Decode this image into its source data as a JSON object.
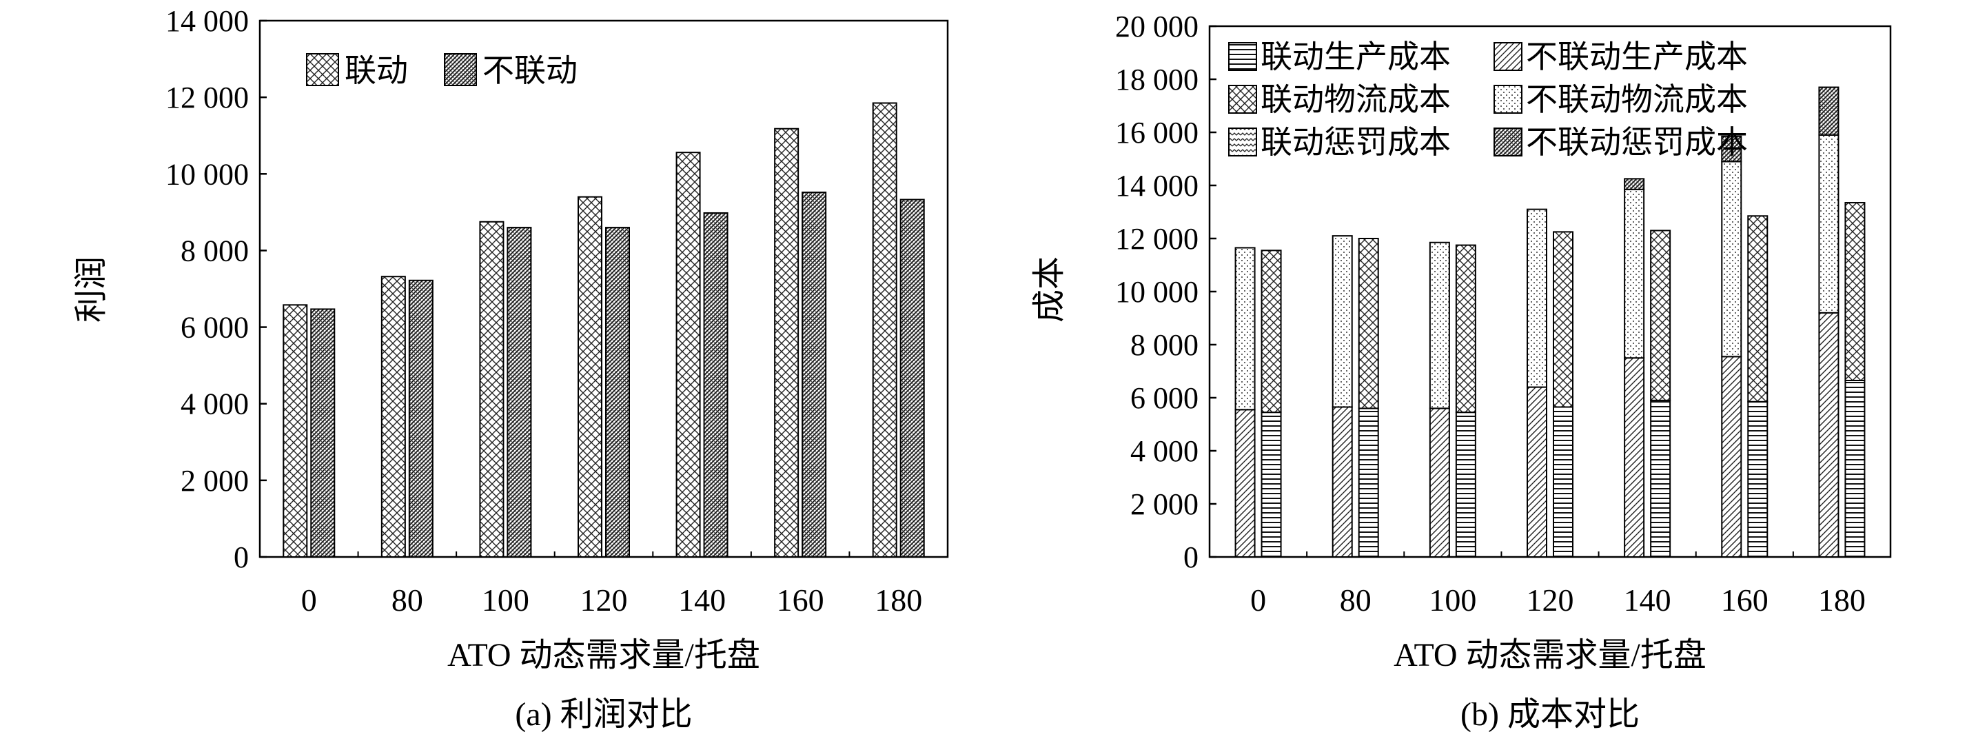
{
  "chart_data": [
    {
      "type": "bar",
      "title": "(a) 利润对比",
      "xlabel": "ATO 动态需求量/托盘",
      "ylabel": "利润",
      "ylim": [
        0,
        14000
      ],
      "yticks": [
        "0",
        "2 000",
        "4 000",
        "6 000",
        "8 000",
        "10 000",
        "12 000",
        "14 000"
      ],
      "categories": [
        "0",
        "80",
        "100",
        "120",
        "140",
        "160",
        "180"
      ],
      "legend_position": "top-left",
      "series": [
        {
          "name": "联动",
          "pattern": "cross-hatch",
          "values": [
            6580,
            7320,
            8750,
            9400,
            10560,
            11180,
            11850
          ]
        },
        {
          "name": "不联动",
          "pattern": "dense-diagonal",
          "values": [
            6470,
            7220,
            8600,
            8600,
            8980,
            9520,
            9330
          ]
        }
      ]
    },
    {
      "type": "bar",
      "stacked": true,
      "title": "(b) 成本对比",
      "xlabel": "ATO 动态需求量/托盘",
      "ylabel": "成本",
      "ylim": [
        0,
        20000
      ],
      "yticks": [
        "0",
        "2 000",
        "4 000",
        "6 000",
        "8 000",
        "10 000",
        "12 000",
        "14 000",
        "16 000",
        "18 000",
        "20 000"
      ],
      "categories": [
        "0",
        "80",
        "100",
        "120",
        "140",
        "160",
        "180"
      ],
      "legend_position": "top-left",
      "legend": [
        "联动生产成本",
        "不联动生产成本",
        "联动物流成本",
        "不联动物流成本",
        "联动惩罚成本",
        "不联动惩罚成本"
      ],
      "groups": [
        {
          "name": "联动",
          "components": [
            {
              "name": "联动生产成本",
              "pattern": "diagonal",
              "values": [
                5550,
                5650,
                5600,
                6400,
                7500,
                7550,
                9200
              ]
            },
            {
              "name": "联动物流成本",
              "pattern": "dots",
              "values": [
                6100,
                6450,
                6250,
                6700,
                6350,
                7350,
                6700
              ]
            },
            {
              "name": "联动惩罚成本",
              "pattern": "dense-diagonal",
              "values": [
                0,
                0,
                0,
                0,
                400,
                950,
                1800
              ]
            }
          ]
        },
        {
          "name": "不联动",
          "components": [
            {
              "name": "不联动生产成本",
              "pattern": "horizontal-lines",
              "values": [
                5450,
                5600,
                5450,
                5650,
                5900,
                5850,
                6650
              ]
            },
            {
              "name": "不联动物流成本",
              "pattern": "cross-hatch",
              "values": [
                6100,
                6400,
                6300,
                6600,
                6400,
                7000,
                6700
              ]
            },
            {
              "name": "不联动惩罚成本",
              "pattern": "waves",
              "values": [
                0,
                0,
                0,
                0,
                0,
                0,
                0
              ]
            }
          ]
        }
      ]
    }
  ]
}
